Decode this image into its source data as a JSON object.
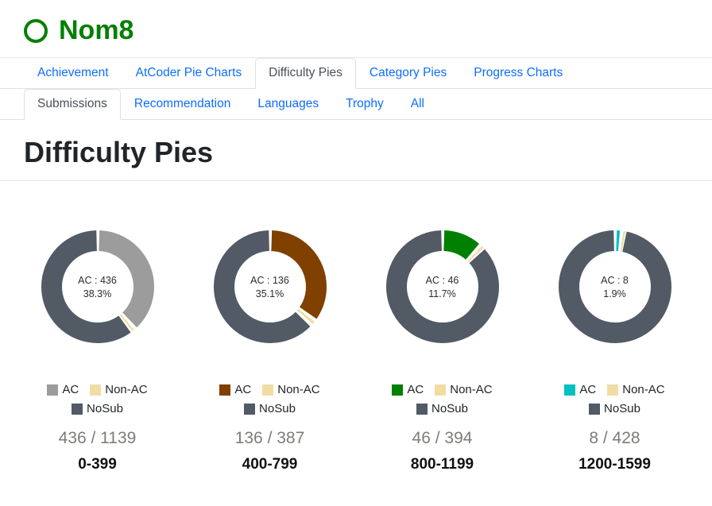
{
  "header": {
    "username": "Nom8"
  },
  "page": {
    "title": "Difficulty Pies"
  },
  "tabs": {
    "rows": [
      [
        {
          "label": "Achievement",
          "active": false
        },
        {
          "label": "AtCoder Pie Charts",
          "active": false
        },
        {
          "label": "Difficulty Pies",
          "active": true
        },
        {
          "label": "Category Pies",
          "active": false
        },
        {
          "label": "Progress Charts",
          "active": false
        }
      ],
      [
        {
          "label": "Submissions",
          "active": true
        },
        {
          "label": "Recommendation",
          "active": false
        },
        {
          "label": "Languages",
          "active": false
        },
        {
          "label": "Trophy",
          "active": false
        },
        {
          "label": "All",
          "active": false
        }
      ]
    ]
  },
  "legend": {
    "ac": "AC",
    "nonac": "Non-AC",
    "nosub": "NoSub"
  },
  "colors": {
    "username_green": "#008000",
    "nonac": "#f1dda4",
    "nosub": "#515a65",
    "link_blue": "#0d6efd"
  },
  "chart_data": [
    {
      "type": "pie",
      "range": "0-399",
      "ac": 436,
      "total": 1139,
      "ac_pct": 38.3,
      "nonac_pct": 1.2,
      "center_label": "AC : 436",
      "pct_label": "38.3%",
      "fraction_label": "436 / 1139",
      "ac_color": "#9c9c9c",
      "legend_position": "bottom"
    },
    {
      "type": "pie",
      "range": "400-799",
      "ac": 136,
      "total": 387,
      "ac_pct": 35.1,
      "nonac_pct": 1.8,
      "center_label": "AC : 136",
      "pct_label": "35.1%",
      "fraction_label": "136 / 387",
      "ac_color": "#804000",
      "legend_position": "bottom"
    },
    {
      "type": "pie",
      "range": "800-1199",
      "ac": 46,
      "total": 394,
      "ac_pct": 11.7,
      "nonac_pct": 1.2,
      "center_label": "AC : 46",
      "pct_label": "11.7%",
      "fraction_label": "46 / 394",
      "ac_color": "#008000",
      "legend_position": "bottom"
    },
    {
      "type": "pie",
      "range": "1200-1599",
      "ac": 8,
      "total": 428,
      "ac_pct": 1.9,
      "nonac_pct": 0.9,
      "center_label": "AC : 8",
      "pct_label": "1.9%",
      "fraction_label": "8 / 428",
      "ac_color": "#00c0c0",
      "legend_position": "bottom"
    }
  ]
}
